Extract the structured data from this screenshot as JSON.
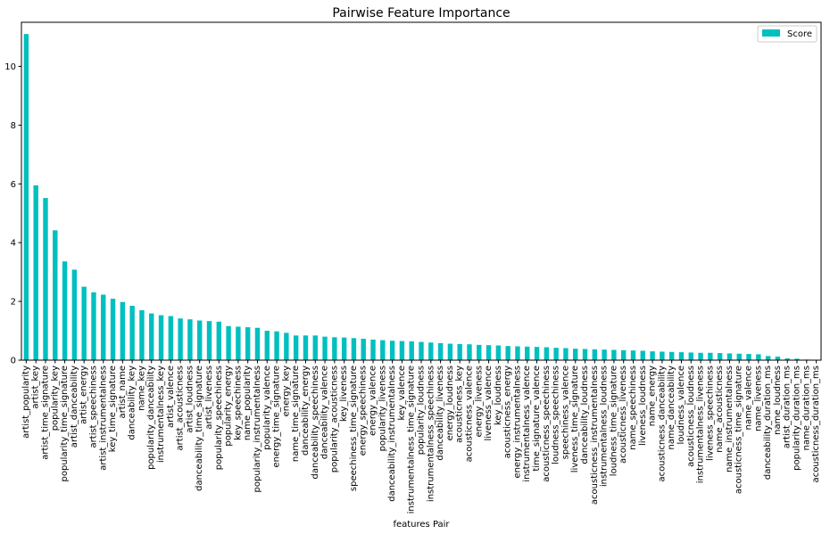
{
  "chart_data": {
    "type": "bar",
    "title": "Pairwise Feature Importance",
    "xlabel": "features Pair",
    "ylabel": "",
    "ylim": [
      0,
      11.5
    ],
    "yticks": [
      0,
      2,
      4,
      6,
      8,
      10
    ],
    "legend_position": "top-right",
    "color": "#00bfbf",
    "series": [
      {
        "name": "Score"
      }
    ],
    "categories": [
      "artist_popularity",
      "artist_key",
      "artist_time_signature",
      "popularity_key",
      "popularity_time_signature",
      "artist_danceability",
      "artist_energy",
      "artist_speechiness",
      "artist_instrumentalness",
      "key_time_signature",
      "artist_name",
      "danceability_key",
      "name_key",
      "popularity_danceability",
      "instrumentalness_key",
      "artist_valence",
      "artist_acousticness",
      "artist_loudness",
      "danceability_time_signature",
      "artist_liveness",
      "popularity_speechiness",
      "popularity_energy",
      "key_speechiness",
      "name_popularity",
      "popularity_instrumentalness",
      "popularity_valence",
      "energy_time_signature",
      "energy_key",
      "name_time_signature",
      "danceability_energy",
      "danceability_speechiness",
      "danceability_valence",
      "popularity_acousticness",
      "key_liveness",
      "speechiness_time_signature",
      "energy_speechiness",
      "energy_valence",
      "popularity_liveness",
      "danceability_instrumentalness",
      "key_valence",
      "instrumentalness_time_signature",
      "popularity_loudness",
      "instrumentalness_speechiness",
      "danceability_liveness",
      "energy_loudness",
      "acousticness_key",
      "acousticness_valence",
      "energy_liveness",
      "liveness_valence",
      "key_loudness",
      "acousticness_energy",
      "energy_instrumentalness",
      "instrumentalness_valence",
      "time_signature_valence",
      "acousticness_speechiness",
      "loudness_speechiness",
      "speechiness_valence",
      "liveness_time_signature",
      "danceability_loudness",
      "acousticness_instrumentalness",
      "instrumentalness_loudness",
      "loudness_time_signature",
      "acousticness_liveness",
      "name_speechiness",
      "liveness_loudness",
      "name_energy",
      "acousticness_danceability",
      "name_danceability",
      "loudness_valence",
      "acousticness_loudness",
      "instrumentalness_liveness",
      "liveness_speechiness",
      "name_acousticness",
      "name_instrumentalness",
      "acousticness_time_signature",
      "name_valence",
      "name_liveness",
      "danceability_duration_ms",
      "name_loudness",
      "artist_duration_ms",
      "popularity_duration_ms",
      "name_duration_ms",
      "acousticness_duration_ms"
    ],
    "values": [
      11.1,
      5.95,
      5.52,
      4.42,
      3.36,
      3.08,
      2.5,
      2.31,
      2.23,
      2.09,
      1.98,
      1.85,
      1.7,
      1.59,
      1.53,
      1.5,
      1.42,
      1.39,
      1.35,
      1.33,
      1.31,
      1.16,
      1.14,
      1.12,
      1.1,
      1.0,
      0.98,
      0.93,
      0.84,
      0.84,
      0.84,
      0.8,
      0.78,
      0.77,
      0.75,
      0.73,
      0.7,
      0.68,
      0.66,
      0.65,
      0.64,
      0.62,
      0.6,
      0.58,
      0.56,
      0.55,
      0.54,
      0.52,
      0.51,
      0.5,
      0.48,
      0.47,
      0.46,
      0.45,
      0.44,
      0.42,
      0.41,
      0.39,
      0.38,
      0.37,
      0.36,
      0.35,
      0.34,
      0.33,
      0.32,
      0.3,
      0.29,
      0.28,
      0.27,
      0.26,
      0.25,
      0.25,
      0.24,
      0.23,
      0.22,
      0.21,
      0.2,
      0.14,
      0.12,
      0.06,
      0.05,
      0.02,
      0.01
    ]
  }
}
